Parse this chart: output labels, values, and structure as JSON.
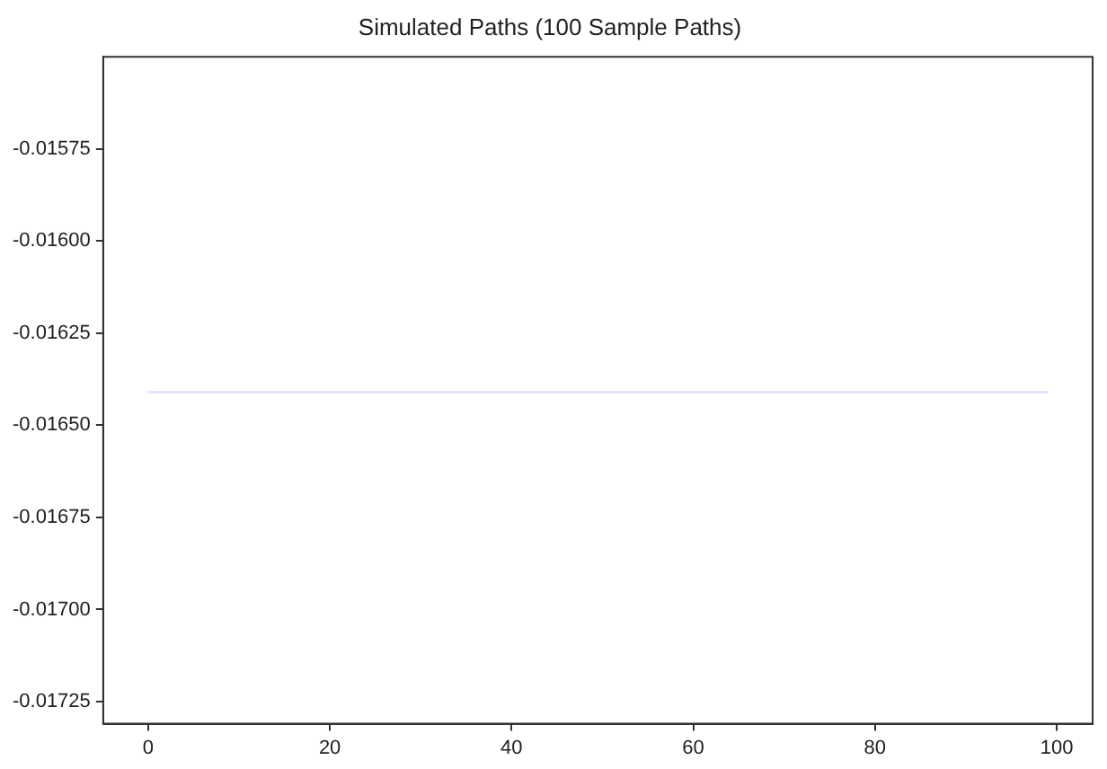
{
  "chart_data": {
    "type": "line",
    "title": "Simulated Paths (100 Sample Paths)",
    "x": [
      0,
      99
    ],
    "series": [
      {
        "color": "#e3e3ff",
        "values": [
          -0.01641,
          -0.01641
        ]
      }
    ],
    "xlim": [
      -4.95,
      103.95
    ],
    "xticks": [
      0,
      20,
      40,
      60,
      80,
      100
    ],
    "ylim": [
      -0.01731,
      -0.0155
    ],
    "yticks": [
      {
        "value": -0.01575,
        "label": "-0.01575"
      },
      {
        "value": -0.016,
        "label": "-0.01600"
      },
      {
        "value": -0.01625,
        "label": "-0.01625"
      },
      {
        "value": -0.0165,
        "label": "-0.01650"
      },
      {
        "value": -0.01675,
        "label": "-0.01675"
      },
      {
        "value": -0.017,
        "label": "-0.01700"
      },
      {
        "value": -0.01725,
        "label": "-0.01725"
      }
    ],
    "grid": false,
    "legend": false,
    "marker": "none",
    "line_style": "solid"
  }
}
